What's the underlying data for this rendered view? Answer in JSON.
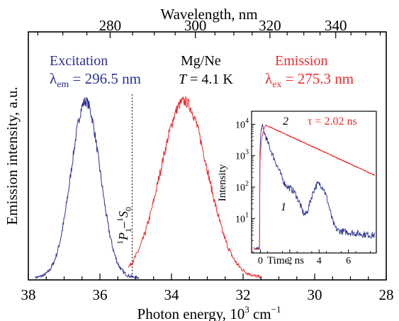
{
  "chart_data": [
    {
      "type": "line",
      "xlabel_bottom": "Photon energy, 10",
      "xlabel_bottom_sup": "3",
      "xlabel_bottom_unit": " cm",
      "xlabel_bottom_unit_sup": "−1",
      "xlabel_top": "Wavelength, nm",
      "ylabel": "Emission intensity, a.u.",
      "xlim": [
        38,
        28
      ],
      "x_ticks": [
        "38",
        "36",
        "34",
        "32",
        "30",
        "28"
      ],
      "top_ticks": [
        "280",
        "300",
        "320",
        "340"
      ],
      "excitation": {
        "title": "Excitation",
        "lambda_label": "λ",
        "lambda_sub": "em",
        "lambda_value": " = 296.5 nm",
        "color": "#2b3192",
        "center": 36.4,
        "fwhm": 0.95,
        "peak": 1.0
      },
      "emission": {
        "title": "Emission",
        "lambda_label": "λ",
        "lambda_sub": "ex",
        "lambda_value": " = 275.3 nm",
        "color": "#ee2a2a",
        "center": 33.65,
        "fwhm": 1.55,
        "peak": 1.0
      },
      "sample": {
        "line1": "Mg/Ne",
        "line2_T": "T",
        "line2_rest": " = 4.1 K"
      },
      "transition": {
        "x": 35.1,
        "label": "P",
        "pre_sup": "1",
        "pre_sub": "1",
        "mid": "–",
        "sup2": "1",
        "s": "S",
        "sub2": "0"
      }
    },
    {
      "type": "line",
      "scale": "log",
      "xlabel": "Time, ns",
      "ylabel": "Intensity",
      "xlim": [
        -0.6,
        7.9
      ],
      "ylim": [
        1,
        10000
      ],
      "x_ticks": [
        "0",
        "2",
        "4",
        "6"
      ],
      "y_ticks": [
        "10",
        "10",
        "10",
        "10"
      ],
      "y_ticks_sup": [
        "1",
        "2",
        "3",
        "4"
      ],
      "series": [
        {
          "name": "1",
          "color": "#2b3192"
        },
        {
          "name": "2",
          "color": "#ee2a2a"
        }
      ],
      "tau_label": "τ = 2.02 ns",
      "tau_ns": 2.02
    }
  ]
}
